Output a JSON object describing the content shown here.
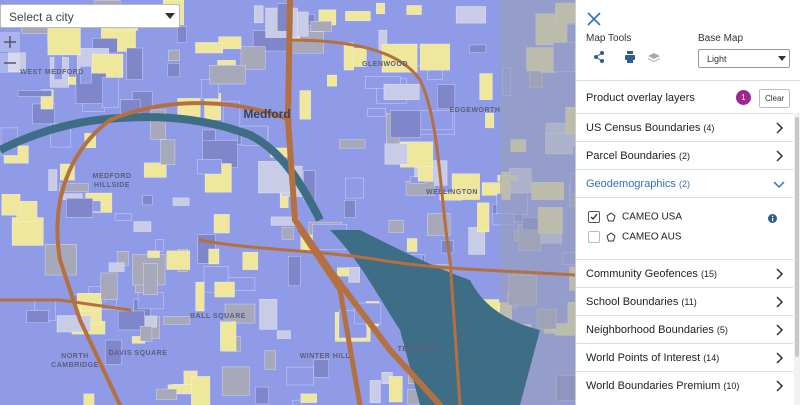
{
  "city_select": {
    "placeholder": "Select a city"
  },
  "map": {
    "labels": [
      {
        "lines": [
          "WEST MEDFORD"
        ]
      },
      {
        "lines": [
          "Medford"
        ]
      },
      {
        "lines": [
          "GLENWOOD"
        ]
      },
      {
        "lines": [
          "EDGEWORTH"
        ]
      },
      {
        "lines": [
          "MEDFORD",
          "HILLSIDE"
        ]
      },
      {
        "lines": [
          "WELLINGTON"
        ]
      },
      {
        "lines": [
          "BALL SQUARE"
        ]
      },
      {
        "lines": [
          "DAVIS SQUARE"
        ]
      },
      {
        "lines": [
          "NORTH",
          "CAMBRIDGE"
        ]
      },
      {
        "lines": [
          "WINTER HILL"
        ]
      },
      {
        "lines": [
          "TEN HILLS"
        ]
      }
    ]
  },
  "panel": {
    "map_tools": "Map Tools",
    "base_map": "Base Map",
    "base_map_value": "Light",
    "overlay_header": "Product overlay layers",
    "badge": "1",
    "clear": "Clear",
    "layers": [
      {
        "name": "US Census Boundaries",
        "count": "(4)"
      },
      {
        "name": "Parcel Boundaries",
        "count": "(2)"
      },
      {
        "name": "Geodemographics",
        "count": "(2)",
        "expanded": true,
        "items": [
          {
            "name": "CAMEO USA",
            "checked": true
          },
          {
            "name": "CAMEO AUS",
            "checked": false
          }
        ]
      },
      {
        "name": "Community Geofences",
        "count": "(15)"
      },
      {
        "name": "School Boundaries",
        "count": "(11)"
      },
      {
        "name": "Neighborhood Boundaries",
        "count": "(5)"
      },
      {
        "name": "World Points of Interest",
        "count": "(14)"
      },
      {
        "name": "World Boundaries Premium",
        "count": "(10)"
      }
    ]
  }
}
